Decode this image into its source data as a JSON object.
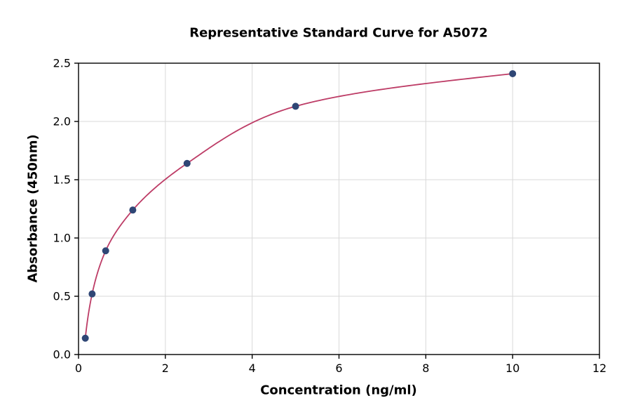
{
  "chart_data": {
    "type": "scatter",
    "title": "Representative Standard Curve for A5072",
    "xlabel": "Concentration (ng/ml)",
    "ylabel": "Absorbance (450nm)",
    "xlim": [
      0,
      12
    ],
    "ylim": [
      0,
      2.5
    ],
    "x_ticks": [
      0,
      2,
      4,
      6,
      8,
      10,
      12
    ],
    "y_ticks": [
      0.0,
      0.5,
      1.0,
      1.5,
      2.0,
      2.5
    ],
    "grid": true,
    "legend": "none",
    "points": [
      {
        "x": 0.156,
        "y": 0.14
      },
      {
        "x": 0.313,
        "y": 0.52
      },
      {
        "x": 0.625,
        "y": 0.89
      },
      {
        "x": 1.25,
        "y": 1.24
      },
      {
        "x": 2.5,
        "y": 1.64
      },
      {
        "x": 5,
        "y": 2.13
      },
      {
        "x": 10,
        "y": 2.41
      }
    ],
    "curve": "smooth saturation fit through points",
    "colors": {
      "point": "#2f4675",
      "curve": "#bd3c66",
      "grid": "#d9d9d9",
      "frame": "#000000",
      "text": "#000000",
      "background": "#ffffff"
    }
  }
}
